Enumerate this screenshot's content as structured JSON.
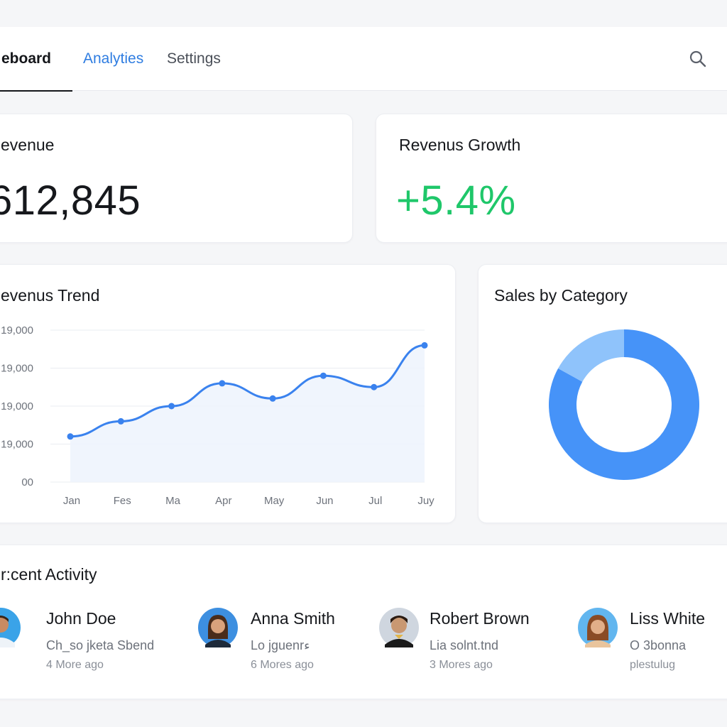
{
  "nav": {
    "tabs": [
      {
        "label": "eboard",
        "active": true
      },
      {
        "label": "Analyties",
        "active": false
      },
      {
        "label": "Settings",
        "active": false
      }
    ],
    "search_icon": "search-icon"
  },
  "kpis": {
    "revenue": {
      "title": "evenue",
      "value": "612,845"
    },
    "growth": {
      "title": "Revenus Growth",
      "value": "+5.4%",
      "color": "#1fc76a"
    }
  },
  "trend": {
    "title": "evenus Trend"
  },
  "sales": {
    "title": "Sales by Category"
  },
  "chart_data": [
    {
      "type": "line",
      "title": "evenus Trend",
      "categories": [
        "Jan",
        "Fes",
        "Ma",
        "Apr",
        "May",
        "Jun",
        "Jul",
        "Juy"
      ],
      "y_tick_labels": [
        "19,000",
        "19,000",
        "19,000",
        "19,000",
        "00"
      ],
      "series": [
        {
          "values": [
            12,
            16,
            20,
            26,
            22,
            28,
            25,
            36
          ],
          "color": "#3a82ee"
        }
      ],
      "ylim": [
        0,
        40
      ],
      "grid": true
    },
    {
      "type": "pie",
      "title": "Sales by Category",
      "slices": [
        {
          "value": 83,
          "color": "#4693f8"
        },
        {
          "value": 17,
          "color": "#8fc3fb"
        }
      ],
      "donut": true
    }
  ],
  "activity": {
    "title": "r:cent Activity",
    "items": [
      {
        "name": "John Doe",
        "desc": "Ch_so jketa Sbend",
        "time": "4 More ago",
        "avatar": "avatar-icon"
      },
      {
        "name": "Anna Smith",
        "desc": "Lo jguenrء",
        "time": "6 Mores ago",
        "avatar": "avatar-icon"
      },
      {
        "name": "Robert Brown",
        "desc": "Lia solnt.tnd",
        "time": "3 Mores ago",
        "avatar": "avatar-icon"
      },
      {
        "name": "Liss White",
        "desc": "O 3bonna",
        "time": "plestulug",
        "avatar": "avatar-icon"
      }
    ]
  }
}
